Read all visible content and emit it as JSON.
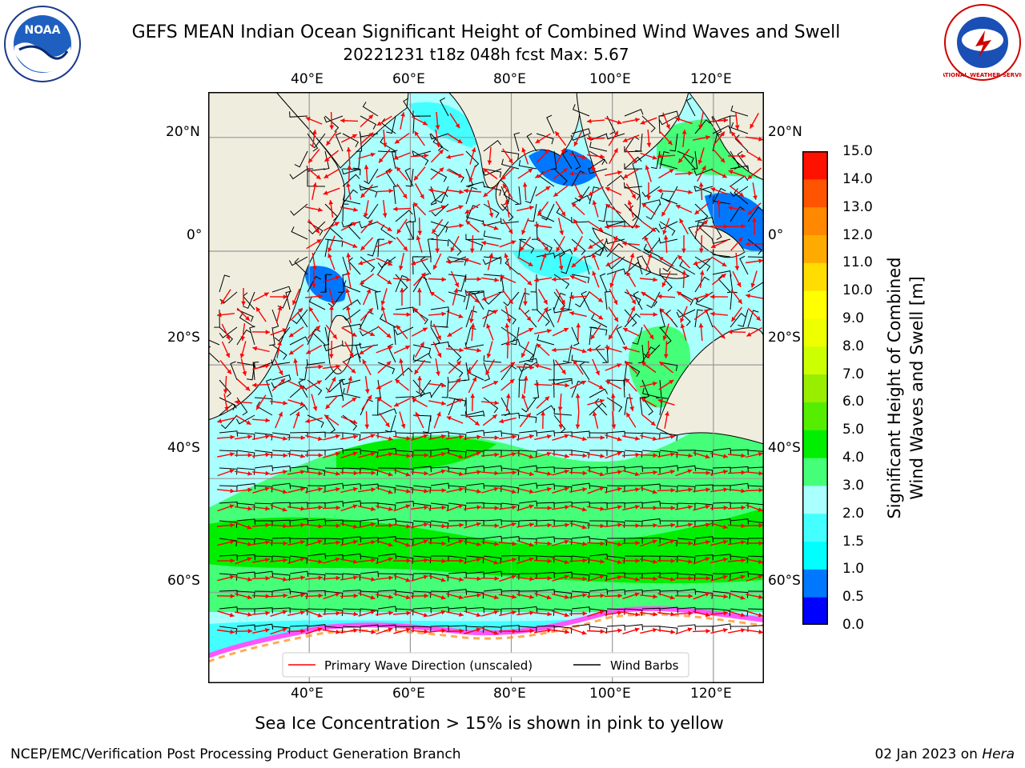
{
  "title": {
    "line1": "GEFS MEAN Indian Ocean Significant Height of Combined Wind Waves and Swell",
    "line2": "20221231 t18z 048h fcst   Max: 5.67"
  },
  "map": {
    "lon_labels": [
      "40°E",
      "60°E",
      "80°E",
      "100°E",
      "120°E"
    ],
    "lat_labels": [
      "20°N",
      "0°",
      "20°S",
      "40°S",
      "60°S"
    ],
    "lon_range": [
      20,
      130
    ],
    "lat_range": [
      -76,
      28
    ],
    "land_color": "#efedde",
    "sea_ice_colors": [
      "#ff55ff",
      "#ffaa55",
      "#ffff66"
    ],
    "legend": {
      "primary_wave": "Primary Wave Direction (unscaled)",
      "wind_barbs": "Wind Barbs"
    },
    "arrow_color": "#ff0000",
    "barb_color": "#000000"
  },
  "colorbar": {
    "label_line1": "Significant Height of Combined",
    "label_line2": "Wind Waves and Swell [m]",
    "ticks": [
      "0.0",
      "0.5",
      "1.0",
      "1.5",
      "2.0",
      "3.0",
      "4.0",
      "5.0",
      "6.0",
      "7.0",
      "8.0",
      "9.0",
      "10.0",
      "11.0",
      "12.0",
      "13.0",
      "14.0",
      "15.0"
    ],
    "colors": [
      "#0000ff",
      "#0077ff",
      "#00ffff",
      "#44ffff",
      "#aaffff",
      "#44ff77",
      "#00ee00",
      "#55ee00",
      "#99ee00",
      "#ccff00",
      "#eeff00",
      "#ffff00",
      "#ffdd00",
      "#ffaa00",
      "#ff8800",
      "#ff5500",
      "#ff1100"
    ]
  },
  "logos": {
    "noaa": "NOAA",
    "nws": "NATIONAL WEATHER SERVICE"
  },
  "caption": "Sea Ice Concentration > 15% is shown in pink to yellow",
  "footer": {
    "left": "NCEP/EMC/Verification Post Processing Product Generation Branch",
    "date": "02 Jan 2023 on",
    "host": "Hera"
  }
}
